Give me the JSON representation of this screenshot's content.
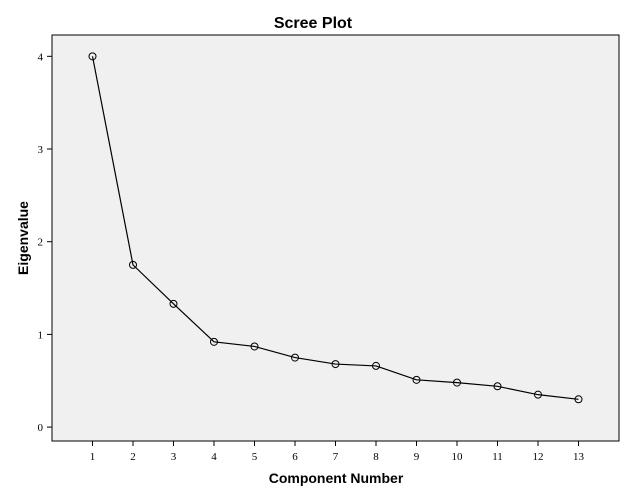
{
  "chart_data": {
    "type": "line",
    "title": "Scree Plot",
    "xlabel": "Component Number",
    "ylabel": "Eigenvalue",
    "x": [
      1,
      2,
      3,
      4,
      5,
      6,
      7,
      8,
      9,
      10,
      11,
      12,
      13
    ],
    "x_tick_labels": [
      "1",
      "2",
      "3",
      "4",
      "5",
      "6",
      "7",
      "8",
      "9",
      "10",
      "11",
      "12",
      "13"
    ],
    "values": [
      4.0,
      1.75,
      1.33,
      0.92,
      0.87,
      0.75,
      0.68,
      0.66,
      0.51,
      0.48,
      0.44,
      0.35,
      0.3
    ],
    "y_ticks": [
      0,
      1,
      2,
      3,
      4
    ],
    "y_tick_labels": [
      "0",
      "1",
      "2",
      "3",
      "4"
    ],
    "ylim": [
      -0.15,
      4.23
    ],
    "xlim": [
      0,
      14
    ],
    "grid": false,
    "markers": "open-circle",
    "colors": {
      "plot_background": "#f0f0f0",
      "line": "#000000"
    }
  }
}
